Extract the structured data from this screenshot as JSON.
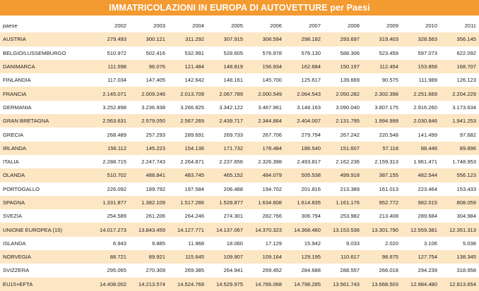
{
  "title": "IMMATRICOLAZIONI IN EUROPA DI AUTOVETTURE per Paesi",
  "table": {
    "header": {
      "label": "paese",
      "years": [
        "2002",
        "2003",
        "2004",
        "2005",
        "2006",
        "2007",
        "2008",
        "2009",
        "2010",
        "2011"
      ]
    },
    "rows": [
      {
        "name": "AUSTRIA",
        "values": [
          "279.493",
          "300.121",
          "311.292",
          "307.915",
          "308.594",
          "298.182",
          "293.697",
          "319.403",
          "328.563",
          "356.145"
        ]
      },
      {
        "name": "BELGIO/LUSSEMBURGO",
        "values": [
          "510.972",
          "502.416",
          "532.991",
          "528.605",
          "576.978",
          "576.130",
          "588.306",
          "523.459",
          "597.073",
          "622.092"
        ]
      },
      {
        "name": "DANIMARCA",
        "values": [
          "111.598",
          "96.076",
          "121.484",
          "148.819",
          "156.934",
          "162.684",
          "150.197",
          "112.454",
          "153.858",
          "168.707"
        ]
      },
      {
        "name": "FINLANDIA",
        "values": [
          "117.034",
          "147.405",
          "142.642",
          "148.161",
          "145.700",
          "125.617",
          "139.669",
          "90.575",
          "111.989",
          "126.123"
        ]
      },
      {
        "name": "FRANCIA",
        "values": [
          "2.145.071",
          "2.009.246",
          "2.013.709",
          "2.067.789",
          "2.000.549",
          "2.064.543",
          "2.050.282",
          "2.302.398",
          "2.251.669",
          "2.204.229"
        ]
      },
      {
        "name": "GERMANIA",
        "values": [
          "3.252.898",
          "3.236.938",
          "3.266.825",
          "3.342.122",
          "3.467.961",
          "3.148.163",
          "3.090.040",
          "3.807.175",
          "2.916.260",
          "3.173.634"
        ]
      },
      {
        "name": "GRAN BRETAGNA",
        "values": [
          "2.563.631",
          "2.579.050",
          "2.567.269",
          "2.439.717",
          "2.344.864",
          "2.404.007",
          "2.131.795",
          "1.994.999",
          "2.030.846",
          "1.941.253"
        ]
      },
      {
        "name": "GRECIA",
        "values": [
          "268.489",
          "257.293",
          "289.691",
          "269.733",
          "267.706",
          "279.794",
          "267.242",
          "220.548",
          "141.499",
          "97.682"
        ]
      },
      {
        "name": "IRLANDA",
        "values": [
          "156.112",
          "145.223",
          "154.136",
          "171.732",
          "178.484",
          "186.540",
          "151.607",
          "57.118",
          "88.446",
          "89.896"
        ]
      },
      {
        "name": "ITALIA",
        "values": [
          "2.288.715",
          "2.247.743",
          "2.264.871",
          "2.237.656",
          "2.326.398",
          "2.493.817",
          "2.162.236",
          "2.159.313",
          "1.961.471",
          "1.748.953"
        ]
      },
      {
        "name": "OLANDA",
        "values": [
          "510.702",
          "488.841",
          "483.745",
          "465.152",
          "484.079",
          "505.538",
          "499.918",
          "387.155",
          "482.544",
          "556.123"
        ]
      },
      {
        "name": "PORTOGALLO",
        "values": [
          "226.092",
          "189.792",
          "197.584",
          "206.488",
          "194.702",
          "201.816",
          "213.389",
          "161.013",
          "223.464",
          "153.433"
        ]
      },
      {
        "name": "SPAGNA",
        "values": [
          "1.331.877",
          "1.382.109",
          "1.517.286",
          "1.528.877",
          "1.634.608",
          "1.614.835",
          "1.161.176",
          "952.772",
          "982.015",
          "808.059"
        ]
      },
      {
        "name": "SVEZIA",
        "values": [
          "254.589",
          "261.206",
          "264.246",
          "274.301",
          "282.766",
          "306.794",
          "253.982",
          "213.408",
          "289.684",
          "304.984"
        ]
      },
      {
        "name": "UNIONE EUROPEA (15)",
        "values": [
          "14.017.273",
          "13.843.459",
          "14.127.771",
          "14.137.067",
          "14.370.323",
          "14.368.460",
          "13.153.536",
          "13.301.790",
          "12.559.381",
          "12.351.313"
        ]
      },
      {
        "name": "ISLANDA",
        "values": [
          "6.943",
          "9.885",
          "11.968",
          "18.060",
          "17.129",
          "15.942",
          "9.033",
          "2.020",
          "3.106",
          "5.038"
        ]
      },
      {
        "name": "NORVEGIA",
        "values": [
          "88.721",
          "89.921",
          "115.645",
          "109.907",
          "109.164",
          "129.195",
          "110.617",
          "98.675",
          "127.754",
          "138.345"
        ]
      },
      {
        "name": "SVIZZERA",
        "values": [
          "295.065",
          "270.309",
          "269.385",
          "264.941",
          "269.452",
          "284.688",
          "288.557",
          "266.018",
          "294.239",
          "318.958"
        ]
      },
      {
        "name": "EU15+EFTA",
        "values": [
          "14.408.002",
          "14.213.574",
          "14.524.769",
          "14.529.975",
          "14.766.068",
          "14.798.285",
          "13.561.743",
          "13.668.503",
          "12.984.480",
          "12.813.654"
        ]
      }
    ]
  },
  "colors": {
    "title_bg": "#f39a31",
    "title_text": "#ffffff",
    "row_alt_bg": "#fde6c4",
    "row_bg": "#ffffff",
    "text": "#222222"
  }
}
